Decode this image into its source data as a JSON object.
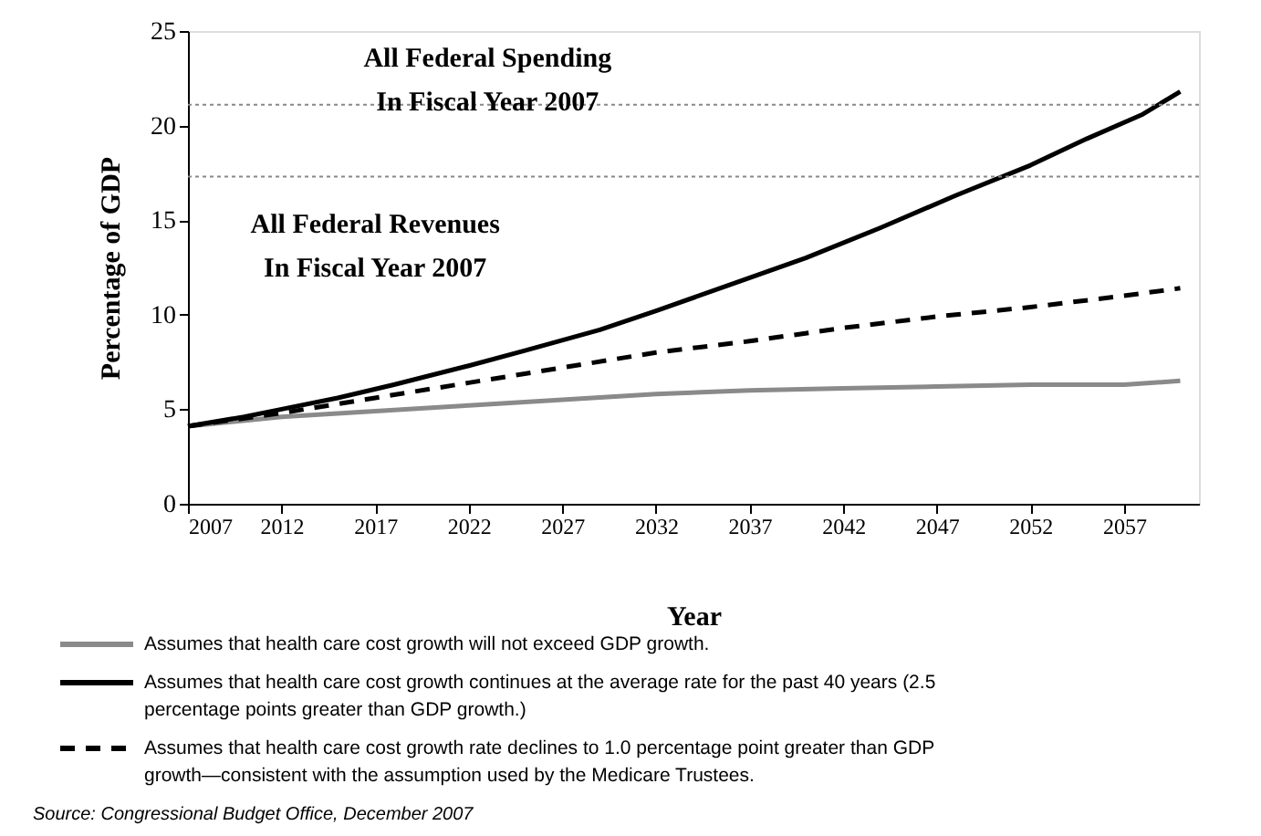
{
  "chart_data": {
    "type": "line",
    "xlabel": "Year",
    "ylabel": "Percentage of GDP",
    "xlim": [
      2007,
      2061
    ],
    "xticks": [
      2007,
      2012,
      2017,
      2022,
      2027,
      2032,
      2037,
      2042,
      2047,
      2052,
      2057
    ],
    "ylim": [
      0,
      25
    ],
    "yticks": [
      0,
      5,
      10,
      15,
      20,
      25
    ],
    "grid": false,
    "legend": "bottom",
    "marker": "none",
    "series": [
      {
        "name": "Assumes that health care cost growth will not exceed GDP growth.",
        "color": "#8a8a8a",
        "line_style": "solid",
        "x": [
          2007,
          2012,
          2017,
          2022,
          2027,
          2032,
          2037,
          2042,
          2047,
          2052,
          2057,
          2060
        ],
        "values": [
          4.1,
          4.6,
          4.9,
          5.2,
          5.5,
          5.8,
          6.0,
          6.1,
          6.2,
          6.3,
          6.3,
          6.5
        ]
      },
      {
        "name": "Assumes that health care cost growth continues at the average rate for the past 40 years (2.5 percentage points greater than GDP growth.)",
        "color": "#000000",
        "line_style": "solid",
        "x": [
          2007,
          2010,
          2012,
          2015,
          2018,
          2022,
          2025,
          2029,
          2032,
          2036,
          2040,
          2044,
          2048,
          2052,
          2055,
          2058,
          2060
        ],
        "values": [
          4.1,
          4.6,
          5.0,
          5.6,
          6.3,
          7.3,
          8.1,
          9.2,
          10.2,
          11.6,
          13.0,
          14.6,
          16.3,
          17.9,
          19.3,
          20.6,
          21.8
        ]
      },
      {
        "name": "Assumes that health care cost growth rate declines to 1.0 percentage point greater than GDP growth—consistent with the assumption used by the Medicare Trustees.",
        "color": "#000000",
        "line_style": "dashed",
        "x": [
          2007,
          2012,
          2017,
          2022,
          2027,
          2032,
          2037,
          2042,
          2047,
          2052,
          2057,
          2060
        ],
        "values": [
          4.1,
          4.8,
          5.6,
          6.4,
          7.2,
          8.0,
          8.6,
          9.3,
          9.9,
          10.4,
          11.0,
          11.4
        ]
      }
    ],
    "ref_lines": [
      {
        "axis": "y",
        "value": 21.1,
        "label": "All Federal Spending\nIn Fiscal Year 2007",
        "color": "#888888",
        "line_style": "dotted"
      },
      {
        "axis": "y",
        "value": 17.3,
        "label": "All Federal Revenues\nIn Fiscal Year 2007",
        "color": "#888888",
        "line_style": "dotted"
      }
    ],
    "annotations": [
      "Source: Congressional Budget Office, December 2007"
    ]
  }
}
